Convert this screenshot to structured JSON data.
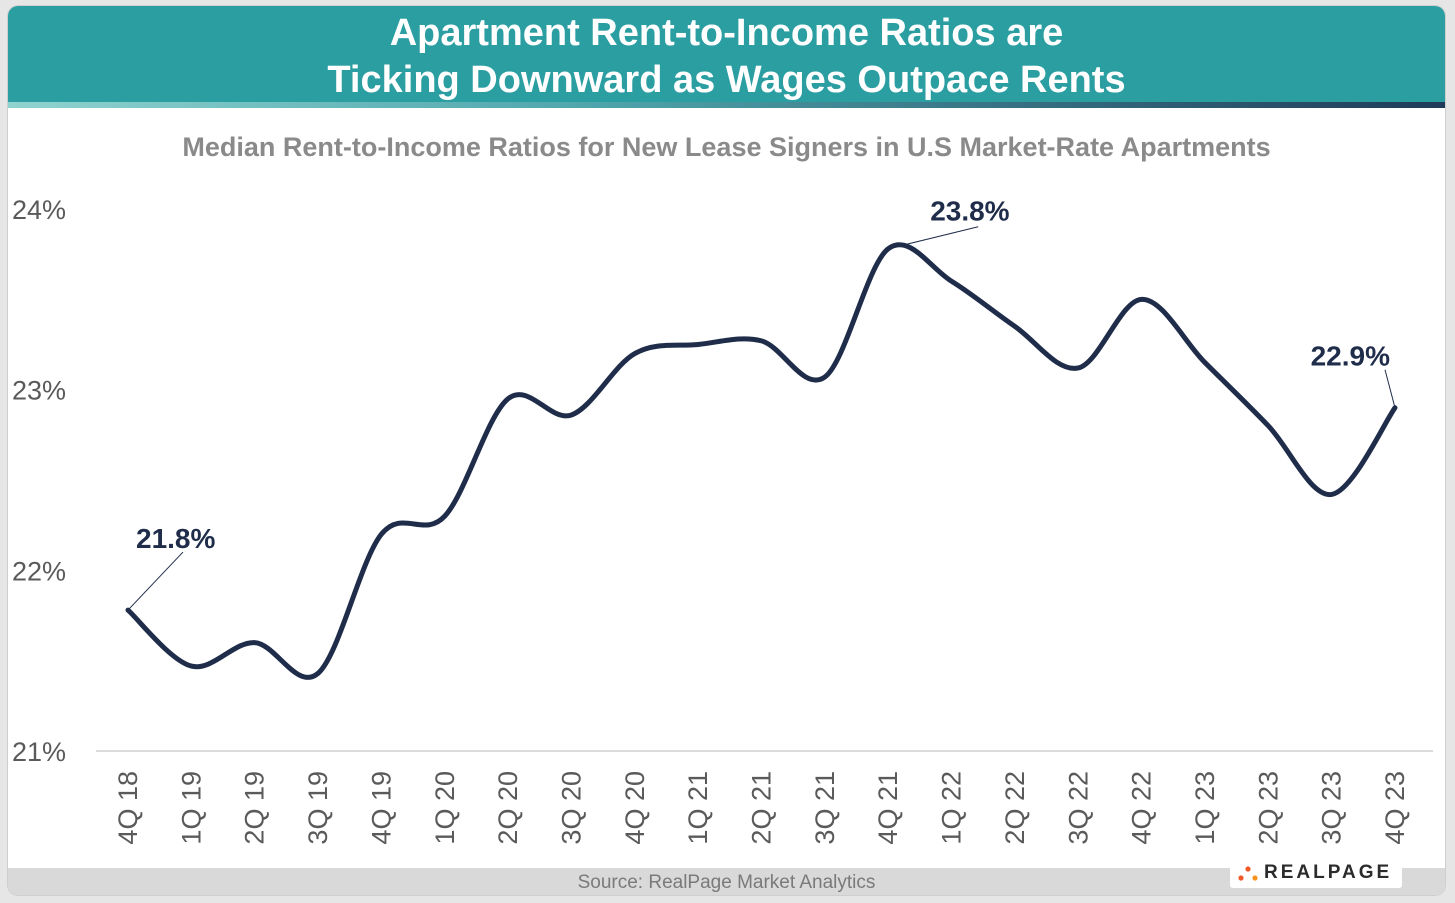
{
  "header": {
    "title_line1": "Apartment Rent-to-Income Ratios are",
    "title_line2": "Ticking Downward as Wages Outpace Rents",
    "bg_color": "#2b9ea2"
  },
  "footer": {
    "source": "Source: RealPage Market Analytics",
    "logo_text": "REALPAGE"
  },
  "chart_data": {
    "type": "line",
    "title": "Median Rent-to-Income Ratios for New Lease Signers in U.S Market-Rate Apartments",
    "xlabel": "",
    "ylabel": "",
    "ylim": [
      21,
      24
    ],
    "yticks": [
      "21%",
      "22%",
      "23%",
      "24%"
    ],
    "yticks_values": [
      21,
      22,
      23,
      24
    ],
    "categories": [
      "4Q 18",
      "1Q 19",
      "2Q 19",
      "3Q 19",
      "4Q 19",
      "1Q 20",
      "2Q 20",
      "3Q 20",
      "4Q 20",
      "1Q 21",
      "2Q 21",
      "3Q 21",
      "4Q 21",
      "1Q 22",
      "2Q 22",
      "3Q 22",
      "4Q 22",
      "1Q 23",
      "2Q 23",
      "3Q 23",
      "4Q 23"
    ],
    "series": [
      {
        "name": "Median Rent-to-Income Ratio",
        "color": "#1f2d4a",
        "values": [
          21.78,
          21.47,
          21.6,
          21.43,
          22.2,
          22.3,
          22.95,
          22.86,
          23.2,
          23.25,
          23.27,
          23.07,
          23.78,
          23.6,
          23.35,
          23.12,
          23.5,
          23.15,
          22.8,
          22.42,
          22.9
        ]
      }
    ],
    "annotations": [
      {
        "index": 0,
        "text": "21.8%"
      },
      {
        "index": 12,
        "text": "23.8%"
      },
      {
        "index": 20,
        "text": "22.9%"
      }
    ],
    "grid": false,
    "legend": "none"
  }
}
